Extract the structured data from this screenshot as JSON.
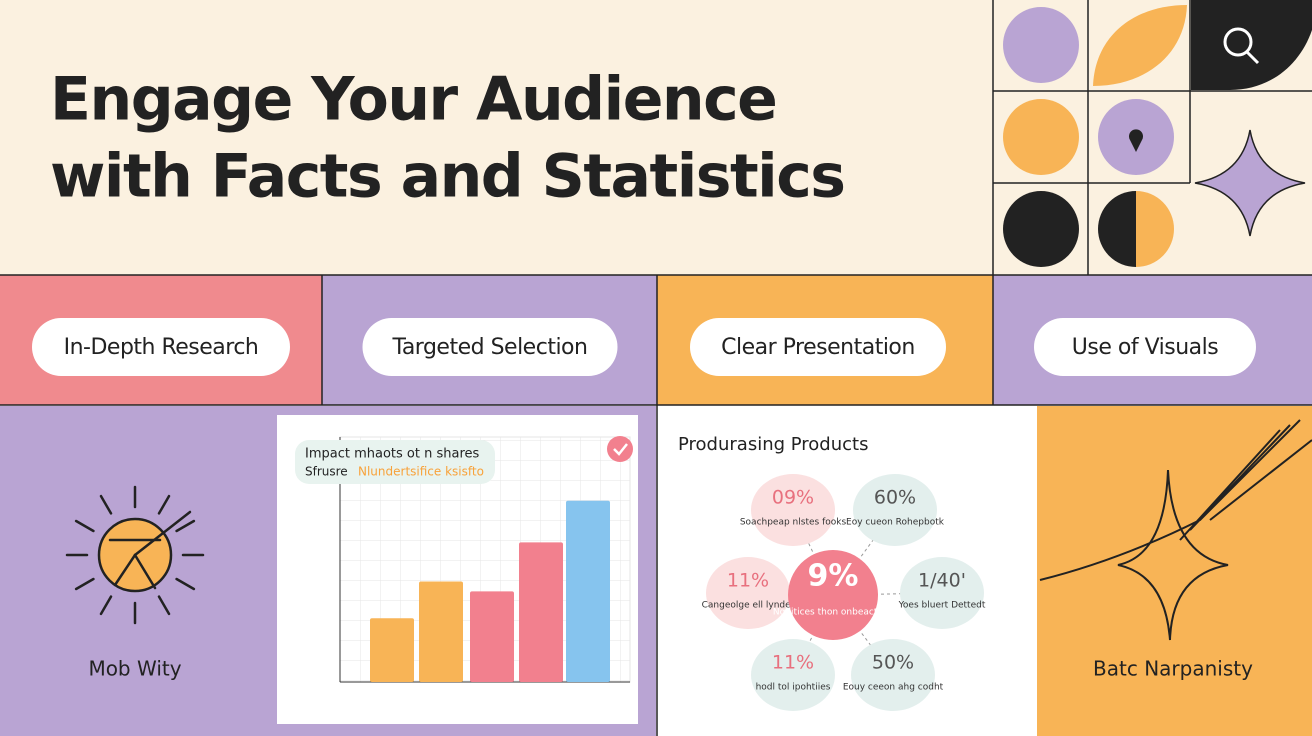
{
  "header": {
    "title_line1": "Engage Your Audience",
    "title_line2": "with Facts and Statistics"
  },
  "pills": [
    "In-Depth Research",
    "Targeted Selection",
    "Clear Presentation",
    "Use of Visuals"
  ],
  "left_panel": {
    "label": "Mob Wity"
  },
  "chart_data": {
    "type": "bar",
    "title": "Impact mhaots ot n shares",
    "subtitle": "Sfrusre",
    "subtitle_highlight": "Nlundertsifice ksisfto",
    "values": [
      26,
      41,
      37,
      57,
      74
    ],
    "colors": [
      "#f8b456",
      "#f8b456",
      "#f2808e",
      "#f2808e",
      "#86c4ee"
    ],
    "ylim": [
      0,
      100
    ]
  },
  "products": {
    "title": "Produrasing Products",
    "center": {
      "value": "9%",
      "label": "Ngditices thon onbeacteas"
    },
    "bubbles": [
      {
        "value": "09%",
        "label": "Soachpeap nlstes fooks"
      },
      {
        "value": "60%",
        "label": "Eoy cueon Rohepbotk"
      },
      {
        "value": "11%",
        "label": "Cangeolge ell lynder"
      },
      {
        "value": "1/40'",
        "label": "Yoes bluert Dettedt"
      },
      {
        "value": "11%",
        "label": "hodl tol ipohtiies"
      },
      {
        "value": "50%",
        "label": "Eouy ceeon ahg codht"
      }
    ]
  },
  "right_panel": {
    "label": "Batc Narpanisty"
  }
}
